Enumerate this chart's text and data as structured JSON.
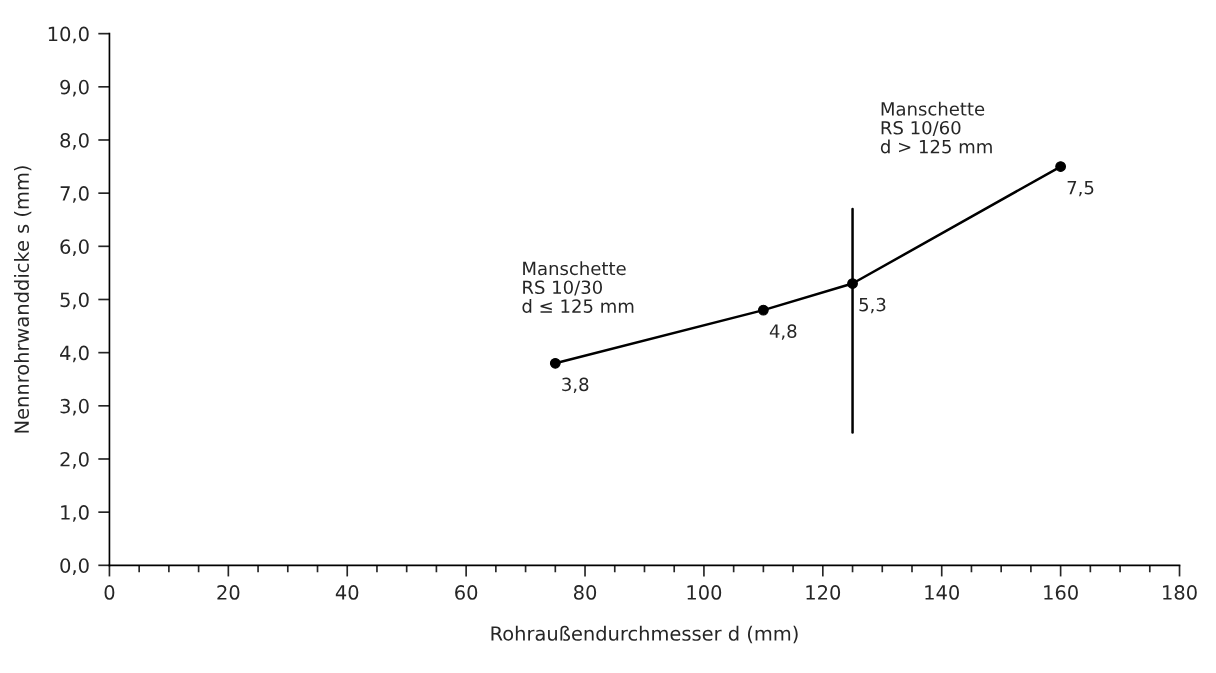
{
  "chart_data": {
    "type": "line",
    "xlabel": "Rohraußendurchmesser d (mm)",
    "ylabel": "Nennrohrwanddicke s (mm)",
    "xlim": [
      0,
      180
    ],
    "xticks": [
      0,
      {
        "value": 5,
        "label": null
      },
      {
        "value": 10,
        "label": null
      },
      {
        "value": 15,
        "label": null
      },
      20,
      {
        "value": 25,
        "label": null
      },
      {
        "value": 30,
        "label": null
      },
      {
        "value": 35,
        "label": null
      },
      40,
      {
        "value": 45,
        "label": null
      },
      {
        "value": 50,
        "label": null
      },
      {
        "value": 55,
        "label": null
      },
      60,
      {
        "value": 65,
        "label": null
      },
      {
        "value": 70,
        "label": null
      },
      {
        "value": 75,
        "label": null
      },
      80,
      {
        "value": 85,
        "label": null
      },
      {
        "value": 90,
        "label": null
      },
      {
        "value": 95,
        "label": null
      },
      100,
      {
        "value": 105,
        "label": null
      },
      {
        "value": 110,
        "label": null
      },
      {
        "value": 115,
        "label": null
      },
      120,
      {
        "value": 125,
        "label": null
      },
      {
        "value": 130,
        "label": null
      },
      {
        "value": 135,
        "label": null
      },
      140,
      {
        "value": 145,
        "label": null
      },
      {
        "value": 150,
        "label": null
      },
      {
        "value": 155,
        "label": null
      },
      160,
      {
        "value": 165,
        "label": null
      },
      {
        "value": 170,
        "label": null
      },
      {
        "value": 175,
        "label": null
      },
      180
    ],
    "ylim": [
      0,
      10
    ],
    "yticks": [
      {
        "value": 0,
        "label": "0,0"
      },
      {
        "value": 1,
        "label": "1,0"
      },
      {
        "value": 2,
        "label": "2,0"
      },
      {
        "value": 3,
        "label": "3,0"
      },
      {
        "value": 4,
        "label": "4,0"
      },
      {
        "value": 5,
        "label": "5,0"
      },
      {
        "value": 6,
        "label": "6,0"
      },
      {
        "value": 7,
        "label": "7,0"
      },
      {
        "value": 8,
        "label": "8,0"
      },
      {
        "value": 9,
        "label": "9,0"
      },
      {
        "value": 10,
        "label": "10,0"
      }
    ],
    "series": [
      {
        "color": "#000000",
        "x": [
          75,
          110,
          125,
          160
        ],
        "values": [
          3.8,
          4.8,
          5.3,
          7.5
        ],
        "marker": "circle",
        "value_labels": [
          "3,8",
          "4,8",
          "5,3",
          "7,5"
        ]
      },
      {
        "color": "#000000",
        "x": [
          125,
          125
        ],
        "values": [
          2.5,
          6.7
        ],
        "marker": "none"
      }
    ],
    "annotations": [
      "Manschette\nRS 10/30\nd ≤ 125 mm",
      "Manschette\nRS 10/60\nd > 125 mm"
    ],
    "grid": false,
    "legend": false,
    "line_style": "solid"
  }
}
